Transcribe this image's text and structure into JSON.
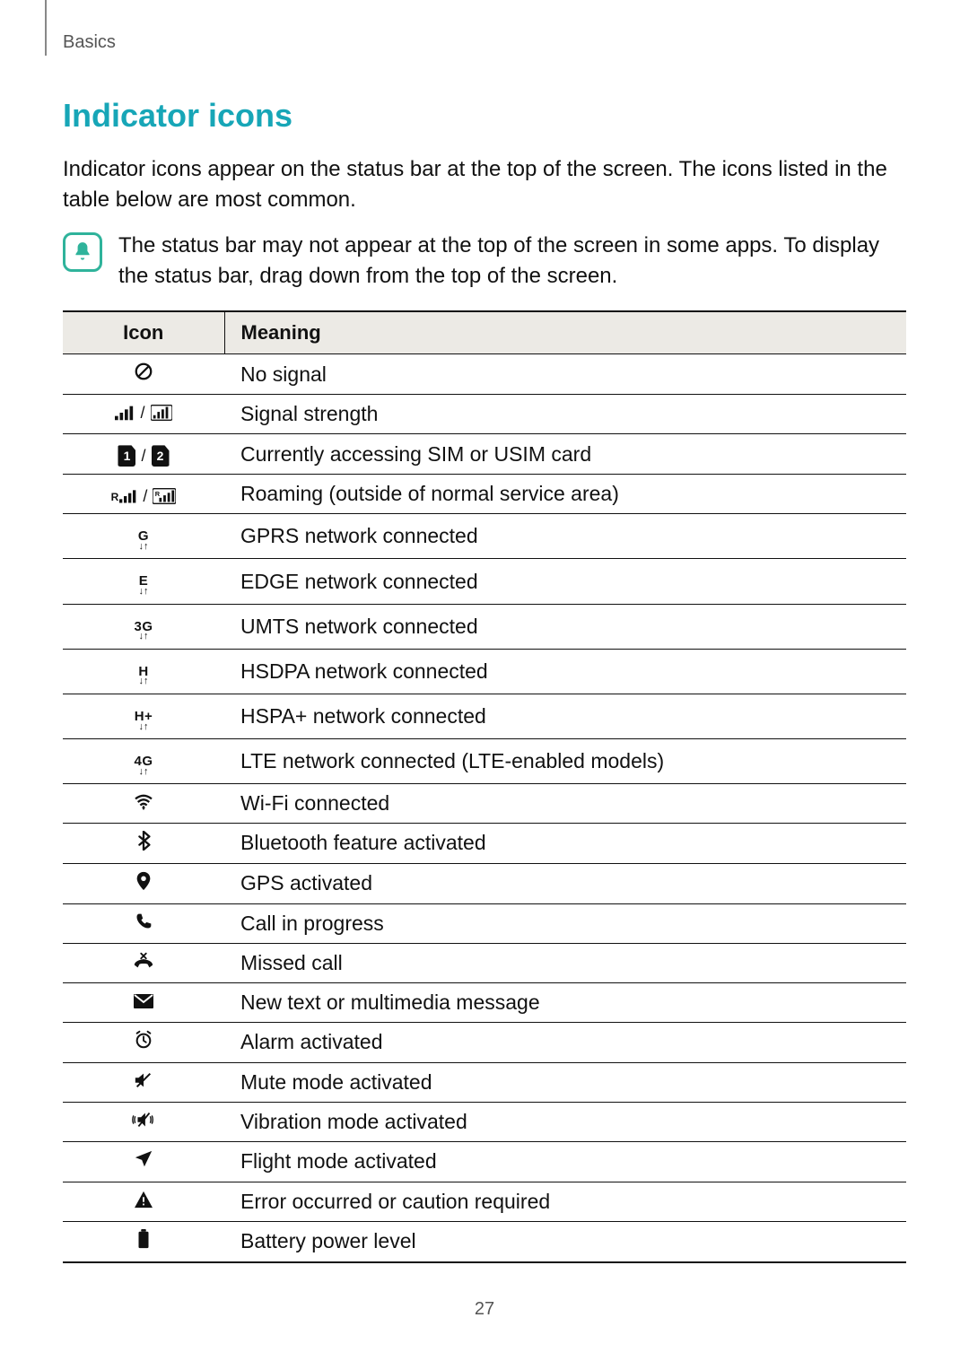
{
  "header": {
    "section": "Basics"
  },
  "title": "Indicator icons",
  "intro": "Indicator icons appear on the status bar at the top of the screen. The icons listed in the table below are most common.",
  "note": "The status bar may not appear at the top of the screen in some apps. To display the status bar, drag down from the top of the screen.",
  "table": {
    "head_icon": "Icon",
    "head_meaning": "Meaning",
    "rows": [
      {
        "icon_name": "no-signal-icon",
        "meaning": "No signal"
      },
      {
        "icon_name": "signal-strength-icon",
        "meaning": "Signal strength"
      },
      {
        "icon_name": "sim-access-icon",
        "meaning": "Currently accessing SIM or USIM card"
      },
      {
        "icon_name": "roaming-icon",
        "meaning": "Roaming (outside of normal service area)"
      },
      {
        "icon_name": "gprs-icon",
        "net_label": "G",
        "meaning": "GPRS network connected"
      },
      {
        "icon_name": "edge-icon",
        "net_label": "E",
        "meaning": "EDGE network connected"
      },
      {
        "icon_name": "umts-icon",
        "net_label": "3G",
        "meaning": "UMTS network connected"
      },
      {
        "icon_name": "hsdpa-icon",
        "net_label": "H",
        "meaning": "HSDPA network connected"
      },
      {
        "icon_name": "hspa-plus-icon",
        "net_label": "H+",
        "meaning": "HSPA+ network connected"
      },
      {
        "icon_name": "lte-icon",
        "net_label": "4G",
        "meaning": "LTE network connected (LTE-enabled models)"
      },
      {
        "icon_name": "wifi-icon",
        "meaning": "Wi-Fi connected"
      },
      {
        "icon_name": "bluetooth-icon",
        "meaning": "Bluetooth feature activated"
      },
      {
        "icon_name": "gps-icon",
        "meaning": "GPS activated"
      },
      {
        "icon_name": "call-icon",
        "meaning": "Call in progress"
      },
      {
        "icon_name": "missed-call-icon",
        "meaning": "Missed call"
      },
      {
        "icon_name": "message-icon",
        "meaning": "New text or multimedia message"
      },
      {
        "icon_name": "alarm-icon",
        "meaning": "Alarm activated"
      },
      {
        "icon_name": "mute-icon",
        "meaning": "Mute mode activated"
      },
      {
        "icon_name": "vibrate-icon",
        "meaning": "Vibration mode activated"
      },
      {
        "icon_name": "flight-mode-icon",
        "meaning": "Flight mode activated"
      },
      {
        "icon_name": "error-icon",
        "meaning": "Error occurred or caution required"
      },
      {
        "icon_name": "battery-icon",
        "meaning": "Battery power level"
      }
    ]
  },
  "page_number": "27",
  "colors": {
    "heading": "#17a6b7",
    "note_border": "#2fb39b",
    "thead_bg": "#eceae5",
    "border": "#111111",
    "text": "#111111",
    "muted": "#555555",
    "bg": "#ffffff"
  },
  "typography": {
    "title_fontsize": 36,
    "body_fontsize": 24,
    "table_fontsize": 23,
    "header_label_fontsize": 20,
    "page_number_fontsize": 20
  }
}
